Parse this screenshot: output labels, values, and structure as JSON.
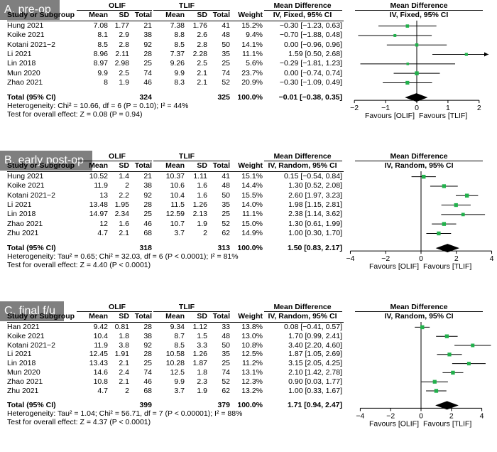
{
  "chart_data": [
    {
      "type": "forest",
      "title": "A, pre-op",
      "group_left": "OLIF",
      "group_right": "TLIF",
      "effect_header": "Mean Difference",
      "effect_method": "IV, Fixed, 95% CI",
      "plot_header": "Mean Difference",
      "plot_method": "IV, Fixed, 95% CI",
      "columns": [
        "Study or Subgroup",
        "Mean",
        "SD",
        "Total",
        "Mean",
        "SD",
        "Total",
        "Weight",
        "IV, Fixed, 95% CI"
      ],
      "rows": [
        {
          "study": "Hung 2021",
          "m1": "7.08",
          "sd1": "1.77",
          "n1": "21",
          "m2": "7.38",
          "sd2": "1.76",
          "n2": "41",
          "weight": "15.2%",
          "ci": "−0.30 [−1.23, 0.63]",
          "md": -0.3,
          "lo": -1.23,
          "hi": 0.63
        },
        {
          "study": "Koike 2021",
          "m1": "8.1",
          "sd1": "2.9",
          "n1": "38",
          "m2": "8.8",
          "sd2": "2.6",
          "n2": "48",
          "weight": "9.4%",
          "ci": "−0.70 [−1.88, 0.48]",
          "md": -0.7,
          "lo": -1.88,
          "hi": 0.48
        },
        {
          "study": "Kotani 2021−2",
          "m1": "8.5",
          "sd1": "2.8",
          "n1": "92",
          "m2": "8.5",
          "sd2": "2.8",
          "n2": "50",
          "weight": "14.1%",
          "ci": "0.00 [−0.96, 0.96]",
          "md": 0.0,
          "lo": -0.96,
          "hi": 0.96
        },
        {
          "study": "Li 2021",
          "m1": "8.96",
          "sd1": "2.11",
          "n1": "28",
          "m2": "7.37",
          "sd2": "2.28",
          "n2": "35",
          "weight": "11.1%",
          "ci": "1.59 [0.50, 2.68]",
          "md": 1.59,
          "lo": 0.5,
          "hi": 2.68
        },
        {
          "study": "Lin 2018",
          "m1": "8.97",
          "sd1": "2.98",
          "n1": "25",
          "m2": "9.26",
          "sd2": "2.5",
          "n2": "25",
          "weight": "5.6%",
          "ci": "−0.29 [−1.81, 1.23]",
          "md": -0.29,
          "lo": -1.81,
          "hi": 1.23
        },
        {
          "study": "Mun 2020",
          "m1": "9.9",
          "sd1": "2.5",
          "n1": "74",
          "m2": "9.9",
          "sd2": "2.1",
          "n2": "74",
          "weight": "23.7%",
          "ci": "0.00 [−0.74, 0.74]",
          "md": 0.0,
          "lo": -0.74,
          "hi": 0.74
        },
        {
          "study": "Zhao 2021",
          "m1": "8",
          "sd1": "1.9",
          "n1": "46",
          "m2": "8.3",
          "sd2": "2.1",
          "n2": "52",
          "weight": "20.9%",
          "ci": "−0.30 [−1.09, 0.49]",
          "md": -0.3,
          "lo": -1.09,
          "hi": 0.49
        }
      ],
      "total": {
        "label": "Total (95% CI)",
        "n1": "324",
        "n2": "325",
        "weight": "100.0%",
        "ci": "−0.01 [−0.38, 0.35]",
        "md": -0.01,
        "lo": -0.38,
        "hi": 0.35
      },
      "heterogeneity": "Heterogeneity: Chi² = 10.66, df = 6 (P = 0.10); I² = 44%",
      "overall": "Test for overall effect: Z = 0.08 (P = 0.94)",
      "xlim": [
        -2.3,
        2.3
      ],
      "ticks": [
        -2,
        -1,
        0,
        1,
        2
      ],
      "tick_labels": [
        "−2",
        "−1",
        "0",
        "1",
        "2"
      ],
      "favours_left": "Favours [OLIF]",
      "favours_right": "Favours [TLIF]"
    },
    {
      "type": "forest",
      "title": "B, early post-op",
      "group_left": "OLIF",
      "group_right": "TLIF",
      "effect_header": "Mean Difference",
      "effect_method": "IV, Random, 95% CI",
      "plot_header": "Mean Difference",
      "plot_method": "IV, Random, 95% CI",
      "columns": [
        "Study or Subgroup",
        "Mean",
        "SD",
        "Total",
        "Mean",
        "SD",
        "Total",
        "Weight",
        "IV, Random, 95% CI"
      ],
      "rows": [
        {
          "study": "Hung 2021",
          "m1": "10.52",
          "sd1": "1.4",
          "n1": "21",
          "m2": "10.37",
          "sd2": "1.11",
          "n2": "41",
          "weight": "15.1%",
          "ci": "0.15 [−0.54, 0.84]",
          "md": 0.15,
          "lo": -0.54,
          "hi": 0.84
        },
        {
          "study": "Koike 2021",
          "m1": "11.9",
          "sd1": "2",
          "n1": "38",
          "m2": "10.6",
          "sd2": "1.6",
          "n2": "48",
          "weight": "14.4%",
          "ci": "1.30 [0.52, 2.08]",
          "md": 1.3,
          "lo": 0.52,
          "hi": 2.08
        },
        {
          "study": "Kotani 2021−2",
          "m1": "13",
          "sd1": "2.2",
          "n1": "92",
          "m2": "10.4",
          "sd2": "1.6",
          "n2": "50",
          "weight": "15.5%",
          "ci": "2.60 [1.97, 3.23]",
          "md": 2.6,
          "lo": 1.97,
          "hi": 3.23
        },
        {
          "study": "Li 2021",
          "m1": "13.48",
          "sd1": "1.95",
          "n1": "28",
          "m2": "11.5",
          "sd2": "1.26",
          "n2": "35",
          "weight": "14.0%",
          "ci": "1.98 [1.15, 2.81]",
          "md": 1.98,
          "lo": 1.15,
          "hi": 2.81
        },
        {
          "study": "Lin 2018",
          "m1": "14.97",
          "sd1": "2.34",
          "n1": "25",
          "m2": "12.59",
          "sd2": "2.13",
          "n2": "25",
          "weight": "11.1%",
          "ci": "2.38 [1.14, 3.62]",
          "md": 2.38,
          "lo": 1.14,
          "hi": 3.62
        },
        {
          "study": "Zhao 2021",
          "m1": "12",
          "sd1": "1.6",
          "n1": "46",
          "m2": "10.7",
          "sd2": "1.9",
          "n2": "52",
          "weight": "15.0%",
          "ci": "1.30 [0.61, 1.99]",
          "md": 1.3,
          "lo": 0.61,
          "hi": 1.99
        },
        {
          "study": "Zhu 2021",
          "m1": "4.7",
          "sd1": "2.1",
          "n1": "68",
          "m2": "3.7",
          "sd2": "2",
          "n2": "62",
          "weight": "14.9%",
          "ci": "1.00 [0.30, 1.70]",
          "md": 1.0,
          "lo": 0.3,
          "hi": 1.7
        }
      ],
      "total": {
        "label": "Total (95% CI)",
        "n1": "318",
        "n2": "313",
        "weight": "100.0%",
        "ci": "1.50 [0.83, 2.17]",
        "md": 1.5,
        "lo": 0.83,
        "hi": 2.17
      },
      "heterogeneity": "Heterogeneity: Tau² = 0.65; Chi² = 32.03, df = 6 (P < 0.0001); I² = 81%",
      "overall": "Test for overall effect: Z = 4.40 (P < 0.0001)",
      "xlim": [
        -4.3,
        4.3
      ],
      "ticks": [
        -4,
        -2,
        0,
        2,
        4
      ],
      "tick_labels": [
        "−4",
        "−2",
        "0",
        "2",
        "4"
      ],
      "favours_left": "Favours [OLIF]",
      "favours_right": "Favours [TLIF]"
    },
    {
      "type": "forest",
      "title": "C, final f/u",
      "group_left": "OLIF",
      "group_right": "TLIF",
      "effect_header": "Mean Difference",
      "effect_method": "IV, Random, 95% CI",
      "plot_header": "Mean Difference",
      "plot_method": "IV, Random, 95% CI",
      "columns": [
        "Study or Subgroup",
        "Mean",
        "SD",
        "Total",
        "Mean",
        "SD",
        "Total",
        "Weight",
        "IV, Random, 95% CI"
      ],
      "rows": [
        {
          "study": "Han 2021",
          "m1": "9.42",
          "sd1": "0.81",
          "n1": "28",
          "m2": "9.34",
          "sd2": "1.12",
          "n2": "33",
          "weight": "13.8%",
          "ci": "0.08 [−0.41, 0.57]",
          "md": 0.08,
          "lo": -0.41,
          "hi": 0.57
        },
        {
          "study": "Koike 2021",
          "m1": "10.4",
          "sd1": "1.8",
          "n1": "38",
          "m2": "8.7",
          "sd2": "1.5",
          "n2": "48",
          "weight": "13.0%",
          "ci": "1.70 [0.99, 2.41]",
          "md": 1.7,
          "lo": 0.99,
          "hi": 2.41
        },
        {
          "study": "Kotani 2021−2",
          "m1": "11.9",
          "sd1": "3.8",
          "n1": "92",
          "m2": "8.5",
          "sd2": "3.3",
          "n2": "50",
          "weight": "10.8%",
          "ci": "3.40 [2.20, 4.60]",
          "md": 3.4,
          "lo": 2.2,
          "hi": 4.6
        },
        {
          "study": "Li 2021",
          "m1": "12.45",
          "sd1": "1.91",
          "n1": "28",
          "m2": "10.58",
          "sd2": "1.26",
          "n2": "35",
          "weight": "12.5%",
          "ci": "1.87 [1.05, 2.69]",
          "md": 1.87,
          "lo": 1.05,
          "hi": 2.69
        },
        {
          "study": "Lin 2018",
          "m1": "13.43",
          "sd1": "2.1",
          "n1": "25",
          "m2": "10.28",
          "sd2": "1.87",
          "n2": "25",
          "weight": "11.2%",
          "ci": "3.15 [2.05, 4.25]",
          "md": 3.15,
          "lo": 2.05,
          "hi": 4.25
        },
        {
          "study": "Mun 2020",
          "m1": "14.6",
          "sd1": "2.4",
          "n1": "74",
          "m2": "12.5",
          "sd2": "1.8",
          "n2": "74",
          "weight": "13.1%",
          "ci": "2.10 [1.42, 2.78]",
          "md": 2.1,
          "lo": 1.42,
          "hi": 2.78
        },
        {
          "study": "Zhao 2021",
          "m1": "10.8",
          "sd1": "2.1",
          "n1": "46",
          "m2": "9.9",
          "sd2": "2.3",
          "n2": "52",
          "weight": "12.3%",
          "ci": "0.90 [0.03, 1.77]",
          "md": 0.9,
          "lo": 0.03,
          "hi": 1.77
        },
        {
          "study": "Zhu 2021",
          "m1": "4.7",
          "sd1": "2",
          "n1": "68",
          "m2": "3.7",
          "sd2": "1.9",
          "n2": "62",
          "weight": "13.2%",
          "ci": "1.00 [0.33, 1.67]",
          "md": 1.0,
          "lo": 0.33,
          "hi": 1.67
        }
      ],
      "total": {
        "label": "Total (95% CI)",
        "n1": "399",
        "n2": "379",
        "weight": "100.0%",
        "ci": "1.71 [0.94, 2.47]",
        "md": 1.71,
        "lo": 0.94,
        "hi": 2.47
      },
      "heterogeneity": "Heterogeneity: Tau² = 1.04; Chi² = 56.71, df = 7 (P < 0.00001); I² = 88%",
      "overall": "Test for overall effect: Z = 4.37 (P < 0.0001)",
      "xlim": [
        -5.0,
        5.0
      ],
      "ticks": [
        -4,
        -2,
        0,
        2,
        4
      ],
      "tick_labels": [
        "−4",
        "−2",
        "0",
        "2",
        "4"
      ],
      "favours_left": "Favours [OLIF]",
      "favours_right": "Favours [TLIF]"
    }
  ]
}
